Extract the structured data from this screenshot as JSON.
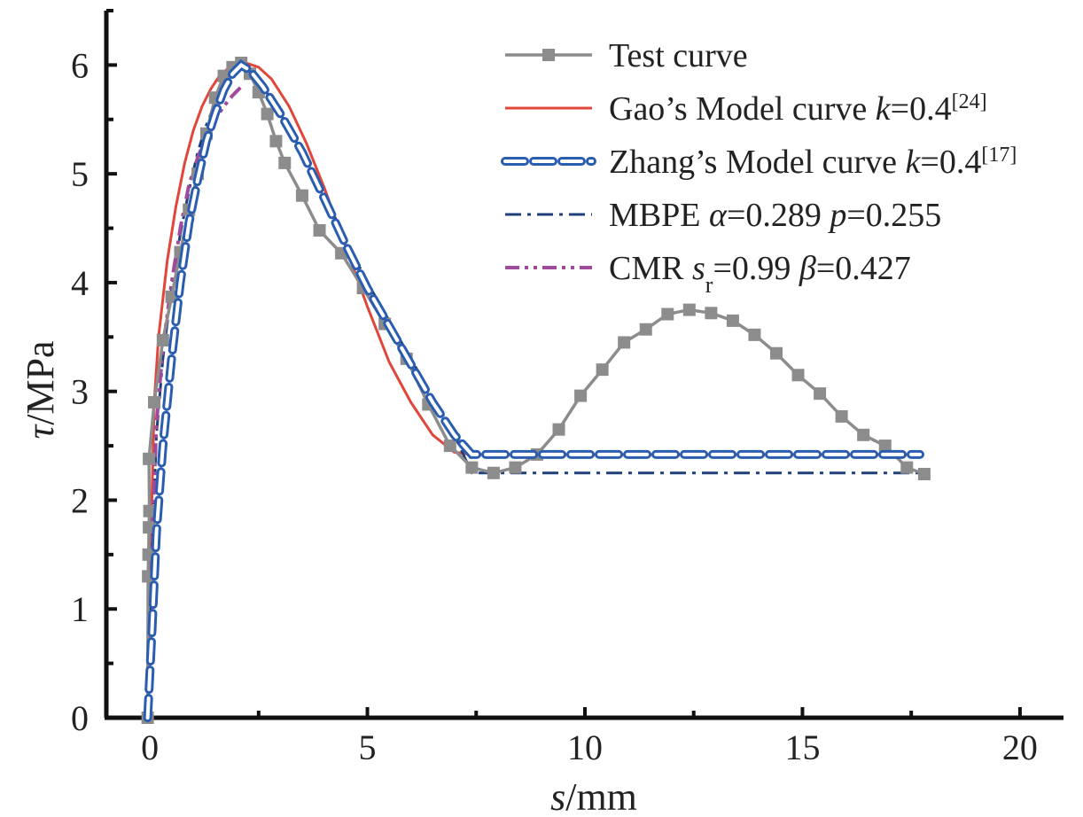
{
  "chart_data": {
    "type": "line",
    "xlabel": {
      "var": "s",
      "unit": "/mm"
    },
    "ylabel": {
      "var": "τ",
      "unit": "/MPa"
    },
    "xlim": [
      -1,
      21
    ],
    "ylim": [
      0,
      6.5
    ],
    "xticks": [
      0,
      5,
      10,
      15,
      20
    ],
    "yticks": [
      0,
      1,
      2,
      3,
      4,
      5,
      6
    ],
    "grid": false,
    "legend_position": "top-right",
    "series": [
      {
        "key": "test",
        "legend": {
          "parts": [
            {
              "t": "Test curve"
            }
          ]
        },
        "color": "#8c8c8c",
        "style": "solid-square-markers",
        "points": [
          [
            -0.05,
            0
          ],
          [
            -0.04,
            1.3
          ],
          [
            -0.03,
            1.5
          ],
          [
            -0.02,
            1.75
          ],
          [
            -0.01,
            1.9
          ],
          [
            -0.02,
            2.38
          ],
          [
            0.1,
            2.9
          ],
          [
            0.3,
            3.47
          ],
          [
            0.5,
            3.87
          ],
          [
            0.7,
            4.28
          ],
          [
            0.9,
            4.67
          ],
          [
            1.1,
            5.0
          ],
          [
            1.3,
            5.37
          ],
          [
            1.5,
            5.7
          ],
          [
            1.7,
            5.9
          ],
          [
            1.9,
            5.98
          ],
          [
            2.1,
            6.02
          ],
          [
            2.3,
            5.92
          ],
          [
            2.5,
            5.75
          ],
          [
            2.7,
            5.55
          ],
          [
            2.9,
            5.3
          ],
          [
            3.1,
            5.1
          ],
          [
            3.5,
            4.8
          ],
          [
            3.9,
            4.48
          ],
          [
            4.4,
            4.27
          ],
          [
            4.9,
            3.95
          ],
          [
            5.4,
            3.62
          ],
          [
            5.9,
            3.3
          ],
          [
            6.4,
            2.88
          ],
          [
            6.9,
            2.5
          ],
          [
            7.4,
            2.3
          ],
          [
            7.9,
            2.25
          ],
          [
            8.4,
            2.3
          ],
          [
            8.9,
            2.42
          ],
          [
            9.4,
            2.65
          ],
          [
            9.9,
            2.96
          ],
          [
            10.4,
            3.2
          ],
          [
            10.9,
            3.45
          ],
          [
            11.4,
            3.57
          ],
          [
            11.9,
            3.71
          ],
          [
            12.4,
            3.75
          ],
          [
            12.9,
            3.72
          ],
          [
            13.4,
            3.65
          ],
          [
            13.9,
            3.52
          ],
          [
            14.4,
            3.35
          ],
          [
            14.9,
            3.15
          ],
          [
            15.4,
            2.98
          ],
          [
            15.9,
            2.77
          ],
          [
            16.4,
            2.6
          ],
          [
            16.9,
            2.5
          ],
          [
            17.4,
            2.3
          ],
          [
            17.8,
            2.24
          ]
        ]
      },
      {
        "key": "gao",
        "legend": {
          "parts": [
            {
              "t": "Gao’s Model curve "
            },
            {
              "t": "k",
              "italic": true
            },
            {
              "t": "=0.4"
            },
            {
              "t": "[24]",
              "sup": true
            }
          ]
        },
        "color": "#e0463a",
        "style": "solid",
        "points": [
          [
            -0.05,
            0
          ],
          [
            0.0,
            1.2
          ],
          [
            0.1,
            2.9
          ],
          [
            0.2,
            3.5
          ],
          [
            0.4,
            4.2
          ],
          [
            0.6,
            4.7
          ],
          [
            0.8,
            5.1
          ],
          [
            1.0,
            5.4
          ],
          [
            1.2,
            5.62
          ],
          [
            1.4,
            5.78
          ],
          [
            1.6,
            5.9
          ],
          [
            1.8,
            5.97
          ],
          [
            2.0,
            6.01
          ],
          [
            2.2,
            6.02
          ],
          [
            2.5,
            5.98
          ],
          [
            2.8,
            5.87
          ],
          [
            3.2,
            5.62
          ],
          [
            3.6,
            5.28
          ],
          [
            4.0,
            4.88
          ],
          [
            4.5,
            4.33
          ],
          [
            5.0,
            3.78
          ],
          [
            5.5,
            3.27
          ],
          [
            6.0,
            2.9
          ],
          [
            6.5,
            2.6
          ],
          [
            7.0,
            2.44
          ],
          [
            7.4,
            2.42
          ],
          [
            17.7,
            2.42
          ]
        ]
      },
      {
        "key": "zhang",
        "legend": {
          "parts": [
            {
              "t": "Zhang’s Model curve "
            },
            {
              "t": "k",
              "italic": true
            },
            {
              "t": "=0.4"
            },
            {
              "t": "[17]",
              "sup": true
            }
          ]
        },
        "color": "#2a5db0",
        "style": "hollow-dash",
        "points": [
          [
            -0.05,
            0
          ],
          [
            0.05,
            0.8
          ],
          [
            0.15,
            1.7
          ],
          [
            0.3,
            2.5
          ],
          [
            0.5,
            3.3
          ],
          [
            0.7,
            4.0
          ],
          [
            0.9,
            4.55
          ],
          [
            1.1,
            4.95
          ],
          [
            1.3,
            5.3
          ],
          [
            1.5,
            5.55
          ],
          [
            1.7,
            5.77
          ],
          [
            1.9,
            5.92
          ],
          [
            2.1,
            6.0
          ],
          [
            2.3,
            5.95
          ],
          [
            2.6,
            5.8
          ],
          [
            3.0,
            5.55
          ],
          [
            3.5,
            5.2
          ],
          [
            4.0,
            4.78
          ],
          [
            4.5,
            4.35
          ],
          [
            5.0,
            3.95
          ],
          [
            5.5,
            3.6
          ],
          [
            6.0,
            3.25
          ],
          [
            6.5,
            2.9
          ],
          [
            7.0,
            2.6
          ],
          [
            7.4,
            2.42
          ],
          [
            17.7,
            2.42
          ]
        ]
      },
      {
        "key": "mbpe",
        "legend": {
          "parts": [
            {
              "t": "MBPE "
            },
            {
              "t": "α",
              "italic": true
            },
            {
              "t": "=0.289 "
            },
            {
              "t": "p",
              "italic": true
            },
            {
              "t": "=0.255"
            }
          ]
        },
        "color": "#1f3f7a",
        "style": "dash-dot",
        "points": [
          [
            -0.05,
            0
          ],
          [
            0.05,
            1.5
          ],
          [
            0.15,
            2.6
          ],
          [
            0.3,
            3.3
          ],
          [
            0.5,
            3.95
          ],
          [
            0.7,
            4.45
          ],
          [
            0.9,
            4.85
          ],
          [
            1.1,
            5.2
          ],
          [
            1.3,
            5.45
          ],
          [
            1.5,
            5.65
          ],
          [
            1.7,
            5.82
          ],
          [
            1.9,
            5.95
          ],
          [
            2.1,
            6.02
          ],
          [
            2.3,
            5.95
          ],
          [
            2.6,
            5.8
          ],
          [
            3.0,
            5.55
          ],
          [
            3.5,
            5.2
          ],
          [
            4.0,
            4.8
          ],
          [
            4.5,
            4.4
          ],
          [
            5.0,
            4.0
          ],
          [
            5.5,
            3.65
          ],
          [
            6.0,
            3.3
          ],
          [
            6.5,
            2.95
          ],
          [
            7.0,
            2.6
          ],
          [
            7.4,
            2.25
          ],
          [
            17.7,
            2.25
          ]
        ]
      },
      {
        "key": "cmr",
        "legend": {
          "parts": [
            {
              "t": "CMR "
            },
            {
              "t": "s",
              "italic": true
            },
            {
              "t": "r",
              "sub": true
            },
            {
              "t": "=0.99 "
            },
            {
              "t": "β",
              "italic": true
            },
            {
              "t": "=0.427"
            }
          ]
        },
        "color": "#a04a9c",
        "style": "dash-dot-dot",
        "points": [
          [
            -0.05,
            0
          ],
          [
            0.05,
            1.6
          ],
          [
            0.15,
            2.7
          ],
          [
            0.3,
            3.4
          ],
          [
            0.5,
            4.0
          ],
          [
            0.7,
            4.5
          ],
          [
            0.9,
            4.9
          ],
          [
            1.1,
            5.15
          ],
          [
            1.3,
            5.35
          ],
          [
            1.5,
            5.5
          ],
          [
            1.7,
            5.62
          ],
          [
            1.9,
            5.72
          ],
          [
            2.1,
            5.8
          ]
        ]
      }
    ]
  }
}
